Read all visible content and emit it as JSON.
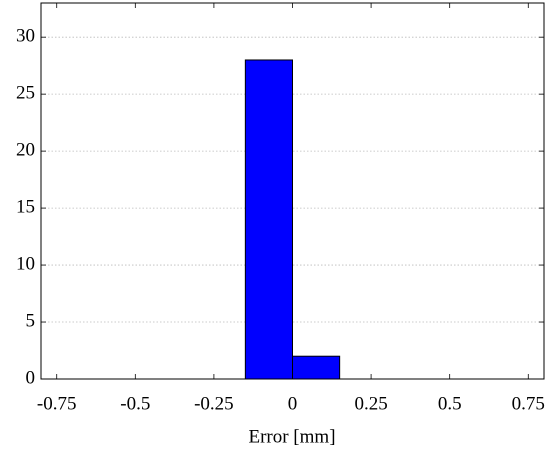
{
  "chart_data": {
    "type": "histogram",
    "x_label": "Error [mm]",
    "bins": [
      -0.15,
      0,
      0.15
    ],
    "values": [
      28,
      2
    ],
    "color": "#0000ff",
    "xlim": [
      -0.8,
      0.8
    ],
    "xticks": [
      -0.75,
      -0.5,
      -0.25,
      0,
      0.25,
      0.5,
      0.75
    ],
    "ylim": [
      0,
      33
    ],
    "yticks": [
      0,
      5,
      10,
      15,
      20,
      25,
      30
    ],
    "grid": true
  }
}
